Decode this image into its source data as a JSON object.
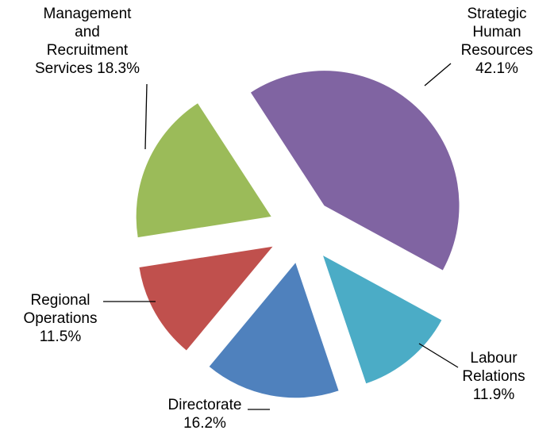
{
  "chart_data": {
    "type": "pie",
    "categories": [
      "Strategic Human Resources",
      "Labour Relations",
      "Directorate",
      "Regional Operations",
      "Management and Recruitment Services"
    ],
    "values": [
      42.1,
      11.9,
      16.2,
      11.5,
      18.3
    ],
    "value_labels": [
      "42.1%",
      "11.9%",
      "16.2%",
      "11.5%",
      "18.3%"
    ],
    "colors": [
      "#8064a2",
      "#4bacc6",
      "#4f81bd",
      "#c0504d",
      "#9bbb59"
    ]
  }
}
